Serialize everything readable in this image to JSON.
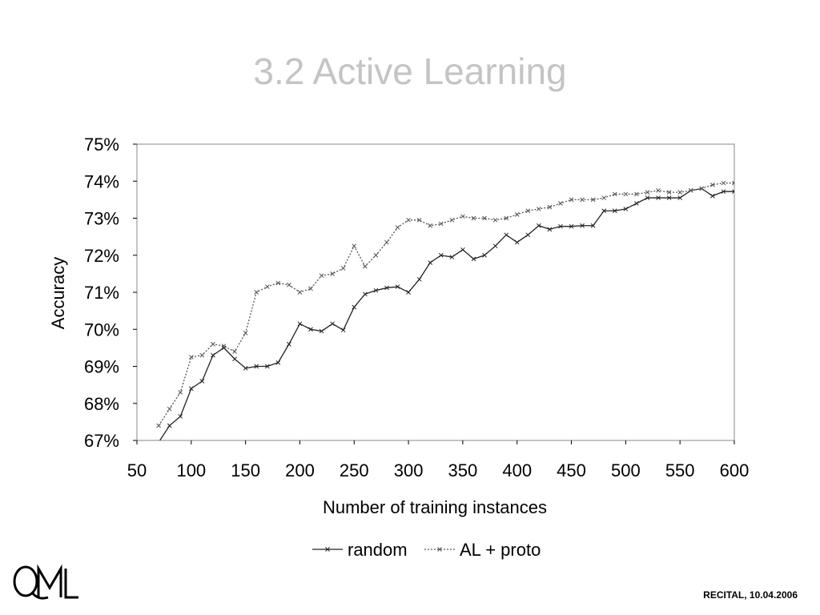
{
  "slide": {
    "title": "3.2 Active Learning",
    "footer": "RECITAL, 10.04.2006",
    "logo_text": "QML"
  },
  "chart_data": {
    "type": "line",
    "title": "",
    "xlabel": "Number of training instances",
    "ylabel": "Accuracy",
    "xlim": [
      50,
      600
    ],
    "ylim": [
      67,
      75
    ],
    "xticks": [
      "50",
      "100",
      "150",
      "200",
      "250",
      "300",
      "350",
      "400",
      "450",
      "500",
      "550",
      "600"
    ],
    "yticks": [
      "67%",
      "68%",
      "69%",
      "70%",
      "71%",
      "72%",
      "73%",
      "74%",
      "75%"
    ],
    "grid": false,
    "legend": "bottom",
    "series": [
      {
        "name": "random",
        "style": "solid",
        "color": "#222222",
        "x": [
          70,
          80,
          90,
          100,
          110,
          120,
          130,
          140,
          150,
          160,
          170,
          180,
          190,
          200,
          210,
          220,
          230,
          240,
          250,
          260,
          270,
          280,
          290,
          300,
          310,
          320,
          330,
          340,
          350,
          360,
          370,
          380,
          390,
          400,
          410,
          420,
          430,
          440,
          450,
          460,
          470,
          480,
          490,
          500,
          510,
          520,
          530,
          540,
          550,
          560,
          570,
          580,
          590,
          600
        ],
        "y": [
          66.95,
          67.4,
          67.65,
          68.4,
          68.6,
          69.3,
          69.5,
          69.2,
          68.95,
          69.0,
          69.0,
          69.1,
          69.6,
          70.15,
          70.0,
          69.95,
          70.15,
          69.98,
          70.6,
          70.95,
          71.05,
          71.12,
          71.15,
          71.0,
          71.35,
          71.8,
          72.0,
          71.95,
          72.15,
          71.9,
          72.0,
          72.25,
          72.55,
          72.35,
          72.55,
          72.8,
          72.7,
          72.78,
          72.78,
          72.8,
          72.8,
          73.2,
          73.2,
          73.25,
          73.4,
          73.55,
          73.55,
          73.55,
          73.55,
          73.75,
          73.8,
          73.6,
          73.72,
          73.72
        ]
      },
      {
        "name": "AL + proto",
        "style": "dotted",
        "color": "#555555",
        "x": [
          70,
          80,
          90,
          100,
          110,
          120,
          130,
          140,
          150,
          160,
          170,
          180,
          190,
          200,
          210,
          220,
          230,
          240,
          250,
          260,
          270,
          280,
          290,
          300,
          310,
          320,
          330,
          340,
          350,
          360,
          370,
          380,
          390,
          400,
          410,
          420,
          430,
          440,
          450,
          460,
          470,
          480,
          490,
          500,
          510,
          520,
          530,
          540,
          550,
          560,
          570,
          580,
          590,
          600
        ],
        "y": [
          67.4,
          67.85,
          68.3,
          69.25,
          69.3,
          69.6,
          69.55,
          69.4,
          69.9,
          71.0,
          71.15,
          71.25,
          71.2,
          71.0,
          71.1,
          71.45,
          71.5,
          71.65,
          72.25,
          71.7,
          72.0,
          72.35,
          72.75,
          72.95,
          72.95,
          72.8,
          72.85,
          72.95,
          73.05,
          73.0,
          73.0,
          72.95,
          73.0,
          73.1,
          73.2,
          73.25,
          73.3,
          73.4,
          73.5,
          73.5,
          73.5,
          73.55,
          73.65,
          73.65,
          73.65,
          73.7,
          73.75,
          73.7,
          73.7,
          73.75,
          73.8,
          73.9,
          73.95,
          73.95
        ]
      }
    ]
  }
}
